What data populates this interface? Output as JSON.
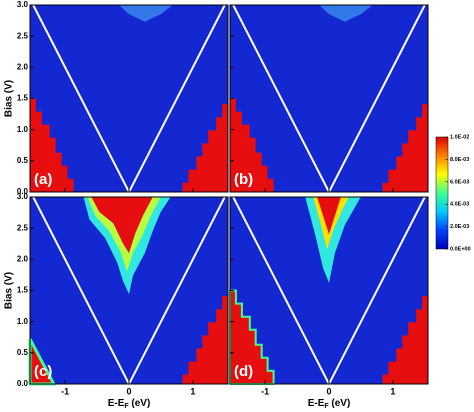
{
  "chart_data": {
    "type": "heatmap",
    "panels": [
      {
        "label": "(a)"
      },
      {
        "label": "(b)"
      },
      {
        "label": "(c)"
      },
      {
        "label": "(d)"
      }
    ],
    "xlabel": [
      "E-E",
      "F",
      " (eV)"
    ],
    "ylabel": "Bias (V)",
    "xlim": [
      -1.55,
      1.55
    ],
    "xticks": [
      -1,
      0,
      1
    ],
    "ylim": [
      0,
      3
    ],
    "yticks": [
      {
        "value": 0,
        "label": "0.0"
      },
      {
        "value": 0.5,
        "label": "0.5"
      },
      {
        "value": 1,
        "label": "1.0"
      },
      {
        "value": 1.5,
        "label": "1.5"
      },
      {
        "value": 2,
        "label": "2.0"
      },
      {
        "value": 2.5,
        "label": "2.5"
      },
      {
        "value": 3,
        "label": "3.0"
      }
    ],
    "colorbar": {
      "lim": [
        0,
        0.01
      ],
      "colors": [
        "#0000b8",
        "#0040ff",
        "#00c8ff",
        "#40ff90",
        "#ffff00",
        "#ff8000",
        "#e00000"
      ],
      "ticks": [
        {
          "value": 0,
          "label": "0.0E+00"
        },
        {
          "value": 0.002,
          "label": "2.0E-03"
        },
        {
          "value": 0.004,
          "label": "4.0E-03"
        },
        {
          "value": 0.006,
          "label": "6.0E-03"
        },
        {
          "value": 0.008,
          "label": "8.0E-03"
        },
        {
          "value": 0.01,
          "label": "1.0E-02"
        }
      ]
    }
  }
}
